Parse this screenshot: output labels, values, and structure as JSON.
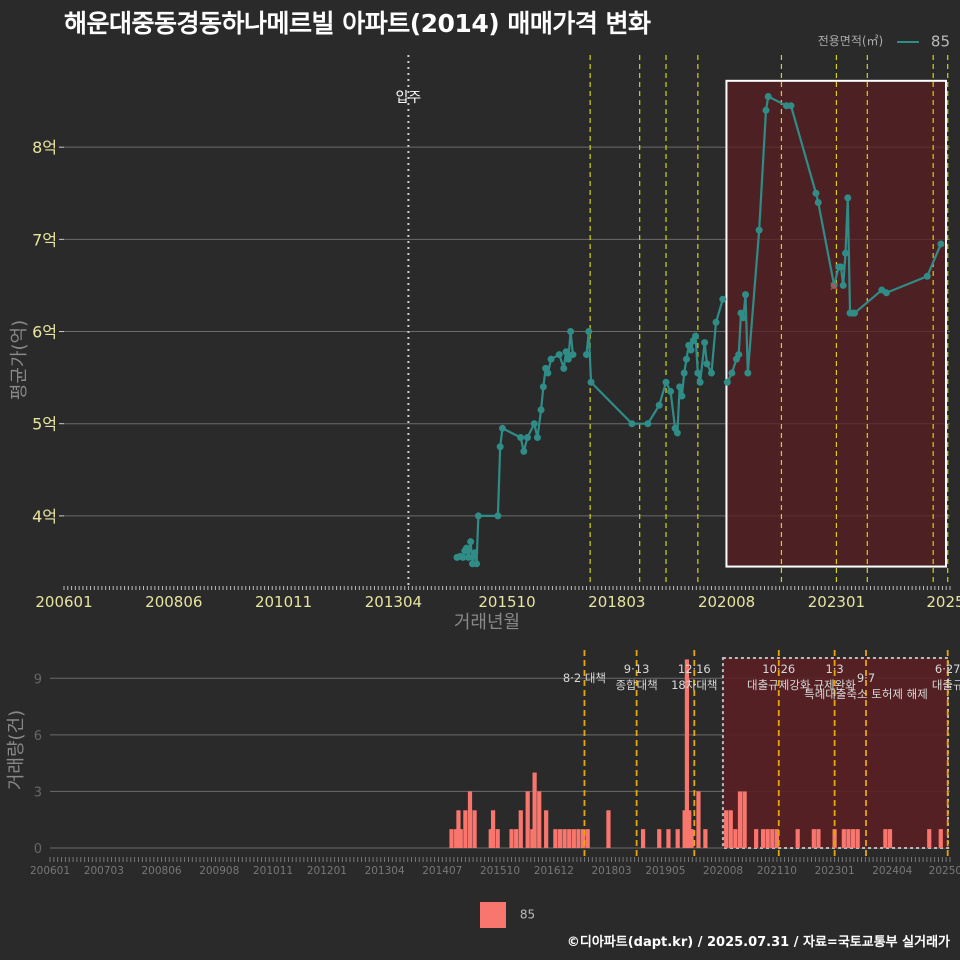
{
  "title": "해운대중동경동하나메르빌 아파트(2014) 매매가격 변화",
  "credit": "©디아파트(dapt.kr) / 2025.07.31 / 자료=국토교통부 실거래가",
  "colors": {
    "background": "#2a2a2a",
    "line": "#2f8c87",
    "bar": "#f8766d",
    "policy_dash": "#d4d40a",
    "policy_dash_bottom": "#e6a800",
    "highlight_fill": "#5a1f22",
    "grid": "#6a6a6a"
  },
  "legend_top": {
    "title": "전용면적(㎡)",
    "label": "85"
  },
  "legend_bottom": {
    "label": "85"
  },
  "chart_data": [
    {
      "type": "line",
      "title": "해운대중동경동하나메르빌 아파트(2014) 매매가격 변화",
      "xlabel": "거래년월",
      "ylabel": "평균가(억)",
      "xlim": [
        2006.0,
        2025.5
      ],
      "ylim": [
        3.25,
        9.0
      ],
      "x_ticks": [
        {
          "x": 2006.0,
          "label": "200601"
        },
        {
          "x": 2008.417,
          "label": "200806"
        },
        {
          "x": 2010.833,
          "label": "201011"
        },
        {
          "x": 2013.25,
          "label": "201304"
        },
        {
          "x": 2015.75,
          "label": "201510"
        },
        {
          "x": 2018.167,
          "label": "201803"
        },
        {
          "x": 2020.583,
          "label": "202008"
        },
        {
          "x": 2023.0,
          "label": "202301"
        },
        {
          "x": 2025.4,
          "label": "2025"
        }
      ],
      "y_ticks": [
        {
          "v": 4,
          "label": "4억"
        },
        {
          "v": 5,
          "label": "5억"
        },
        {
          "v": 6,
          "label": "6억"
        },
        {
          "v": 7,
          "label": "7억"
        },
        {
          "v": 8,
          "label": "8억"
        }
      ],
      "move_in": {
        "x": 2013.58,
        "label": "입주"
      },
      "policy_lines": [
        2017.58,
        2018.67,
        2019.25,
        2019.95,
        2021.79,
        2023.0,
        2023.68,
        2025.13,
        2025.45
      ],
      "highlight": {
        "x0": 2020.58,
        "x1": 2025.5,
        "y0": 3.45,
        "y1": 8.72
      },
      "series": [
        {
          "name": "85",
          "x": [
            2014.65,
            2014.72,
            2014.78,
            2014.82,
            2014.86,
            2014.9,
            2014.95,
            2014.99,
            2015.04,
            2015.08,
            2015.12,
            2015.55,
            2015.6,
            2015.65,
            2016.05,
            2016.12,
            2016.2,
            2016.35,
            2016.42,
            2016.5,
            2016.55,
            2016.6,
            2016.65,
            2016.72,
            2016.9,
            2017.0,
            2017.05,
            2017.1,
            2017.15,
            2017.2
          ],
          "values": [
            3.55,
            3.56,
            3.55,
            3.62,
            3.65,
            3.55,
            3.72,
            3.48,
            3.6,
            3.48,
            4.0,
            4.0,
            4.75,
            4.95,
            4.85,
            4.7,
            4.85,
            5.0,
            4.85,
            5.15,
            5.4,
            5.6,
            5.55,
            5.7,
            5.75,
            5.6,
            5.78,
            5.7,
            6.0,
            5.75
          ]
        },
        {
          "name": "85",
          "x": [
            2017.5,
            2017.55,
            2017.6,
            2018.5,
            2018.85,
            2019.1,
            2019.25,
            2019.35,
            2019.45,
            2019.5,
            2019.55,
            2019.6,
            2019.65,
            2019.7,
            2019.75,
            2019.8,
            2019.85,
            2019.9,
            2019.95,
            2020.0,
            2020.1,
            2020.15,
            2020.25,
            2020.35,
            2020.5
          ],
          "values": [
            5.75,
            6.0,
            5.45,
            5.0,
            5.0,
            5.2,
            5.45,
            5.35,
            4.95,
            4.9,
            5.4,
            5.3,
            5.55,
            5.7,
            5.85,
            5.8,
            5.9,
            5.95,
            5.55,
            5.45,
            5.88,
            5.65,
            5.55,
            6.1,
            6.35
          ]
        },
        {
          "name": "85",
          "x": [
            2020.6,
            2020.7,
            2020.8,
            2020.85,
            2020.9,
            2020.95,
            2021.0,
            2021.05,
            2021.3,
            2021.45,
            2021.5,
            2021.9,
            2022.0,
            2022.55,
            2022.6,
            2022.95,
            2023.05,
            2023.1,
            2023.15,
            2023.2,
            2023.25,
            2023.3,
            2023.35,
            2023.4,
            2024.0,
            2024.1,
            2025.0,
            2025.3
          ],
          "values": [
            5.45,
            5.55,
            5.7,
            5.75,
            6.2,
            6.15,
            6.4,
            5.55,
            7.1,
            8.4,
            8.55,
            8.45,
            8.45,
            7.5,
            7.4,
            6.5,
            6.7,
            6.7,
            6.5,
            6.85,
            7.45,
            6.2,
            6.2,
            6.2,
            6.45,
            6.42,
            6.6,
            6.95
          ]
        }
      ],
      "marker": {
        "x": 2022.95,
        "value": 6.5,
        "label": "×"
      }
    },
    {
      "type": "bar",
      "ylabel": "거래량(건)",
      "xlim": [
        2006.0,
        2025.5
      ],
      "ylim": [
        0,
        10.5
      ],
      "y_ticks": [
        {
          "v": 0,
          "label": "0"
        },
        {
          "v": 3,
          "label": "3"
        },
        {
          "v": 6,
          "label": "6"
        },
        {
          "v": 9,
          "label": "9"
        }
      ],
      "x_ticks": [
        {
          "x": 2006.0,
          "label": "200601"
        },
        {
          "x": 2007.167,
          "label": "200703"
        },
        {
          "x": 2008.417,
          "label": "200806"
        },
        {
          "x": 2009.667,
          "label": "200908"
        },
        {
          "x": 2010.833,
          "label": "201011"
        },
        {
          "x": 2012.0,
          "label": "201201"
        },
        {
          "x": 2013.25,
          "label": "201304"
        },
        {
          "x": 2014.5,
          "label": "201407"
        },
        {
          "x": 2015.75,
          "label": "201510"
        },
        {
          "x": 2016.917,
          "label": "201612"
        },
        {
          "x": 2018.167,
          "label": "201803"
        },
        {
          "x": 2019.333,
          "label": "201905"
        },
        {
          "x": 2020.583,
          "label": "202008"
        },
        {
          "x": 2021.75,
          "label": "202110"
        },
        {
          "x": 2023.0,
          "label": "202301"
        },
        {
          "x": 2024.25,
          "label": "202404"
        },
        {
          "x": 2025.4,
          "label": "20250"
        }
      ],
      "policy_events": [
        {
          "x": 2017.58,
          "label": "8·2 대책",
          "row": 2
        },
        {
          "x": 2018.71,
          "label": "9·13\n종합대책",
          "row": 1
        },
        {
          "x": 2019.96,
          "label": "12·16\n18차대책",
          "row": 1
        },
        {
          "x": 2021.79,
          "label": "10·26\n대출규제강화",
          "row": 1
        },
        {
          "x": 2023.0,
          "label": "1·3\n규제완화",
          "row": 1
        },
        {
          "x": 2023.68,
          "label": "9·7\n특례대출축소 토허제 해제",
          "row": 2
        },
        {
          "x": 2025.45,
          "label": "6·27\n대출규",
          "row": 1
        }
      ],
      "highlight": {
        "x0": 2020.58,
        "x1": 2025.5
      },
      "series": [
        {
          "name": "85",
          "x": [
            2014.7,
            2014.8,
            2014.85,
            2014.9,
            2015.0,
            2015.1,
            2015.2,
            2015.55,
            2015.6,
            2015.7,
            2016.0,
            2016.1,
            2016.2,
            2016.35,
            2016.45,
            2016.5,
            2016.6,
            2016.75,
            2016.95,
            2017.05,
            2017.15,
            2017.25,
            2017.35,
            2017.45,
            2017.55,
            2017.65,
            2018.1,
            2018.85,
            2019.2,
            2019.4,
            2019.6,
            2019.75,
            2019.8,
            2019.85,
            2019.9,
            2020.05,
            2020.2,
            2020.65,
            2020.75,
            2020.85,
            2020.95,
            2021.05,
            2021.3,
            2021.45,
            2021.55,
            2021.65,
            2021.75,
            2022.2,
            2022.55,
            2022.65,
            2023.0,
            2023.2,
            2023.3,
            2023.4,
            2023.5,
            2024.1,
            2024.2,
            2025.05,
            2025.3
          ],
          "values": [
            1,
            1,
            2,
            1,
            2,
            3,
            2,
            1,
            2,
            1,
            1,
            1,
            2,
            3,
            1,
            4,
            3,
            2,
            1,
            1,
            1,
            1,
            1,
            1,
            1,
            1,
            2,
            1,
            1,
            1,
            1,
            2,
            10,
            2,
            1,
            3,
            1,
            2,
            2,
            1,
            3,
            3,
            1,
            1,
            1,
            1,
            1,
            1,
            1,
            1,
            1,
            1,
            1,
            1,
            1,
            1,
            1,
            1,
            1
          ]
        }
      ]
    }
  ]
}
